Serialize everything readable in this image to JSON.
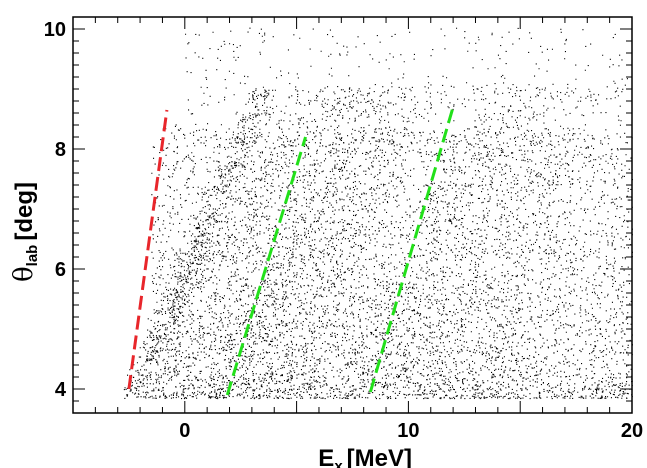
{
  "chart_data": {
    "type": "scatter",
    "title": "",
    "xlabel": {
      "main": "E",
      "sub": "x",
      "unit": "[MeV]"
    },
    "ylabel": {
      "main": "θ",
      "sub": "lab",
      "unit": "[deg]"
    },
    "xlim": [
      -5,
      20
    ],
    "ylim": [
      3.6,
      10.2
    ],
    "xticks": [
      0,
      10,
      20
    ],
    "yticks": [
      4,
      6,
      8,
      10
    ],
    "grid": false,
    "legend": "none",
    "point_color": "#000000",
    "density_description_points": 26000,
    "lines": [
      {
        "color": "#e8262b",
        "style": "dashed",
        "points": [
          [
            -2.5,
            4.0
          ],
          [
            -0.8,
            8.65
          ]
        ]
      },
      {
        "color": "#22e01a",
        "style": "dashed",
        "points": [
          [
            1.9,
            3.9
          ],
          [
            5.4,
            8.2
          ]
        ]
      },
      {
        "color": "#22e01a",
        "style": "dashed",
        "points": [
          [
            8.3,
            3.95
          ],
          [
            12.0,
            8.7
          ]
        ]
      }
    ]
  }
}
